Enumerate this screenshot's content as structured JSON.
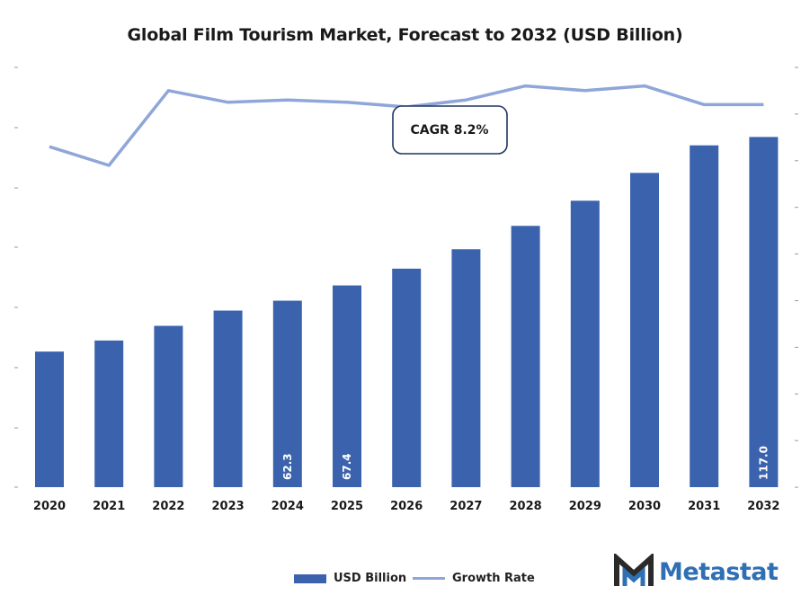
{
  "chart_data": {
    "type": "bar",
    "title": "Global Film Tourism Market, Forecast to 2032 (USD Billion)",
    "categories": [
      "2020",
      "2021",
      "2022",
      "2023",
      "2024",
      "2025",
      "2026",
      "2027",
      "2028",
      "2029",
      "2030",
      "2031",
      "2032"
    ],
    "series": [
      {
        "name": "USD Billion",
        "type": "bar",
        "values": [
          45.3,
          49.0,
          53.9,
          59.0,
          62.3,
          67.4,
          73.0,
          79.5,
          87.3,
          95.7,
          105.0,
          114.2,
          117.0
        ],
        "data_labels": {
          "2024": "62.3",
          "2025": "67.4",
          "2032": "117.0"
        },
        "color": "#3b63ad"
      },
      {
        "name": "Growth Rate",
        "type": "line",
        "values": [
          7.6,
          7.2,
          8.8,
          8.55,
          8.6,
          8.55,
          8.45,
          8.6,
          8.9,
          8.8,
          8.9,
          8.5,
          8.5
        ],
        "color": "#8fa6d9"
      }
    ],
    "annotation": "CAGR 8.2%",
    "legend_position": "bottom-center",
    "grid": false
  },
  "legend": {
    "bar_label": "USD Billion",
    "line_label": "Growth Rate"
  },
  "logo": {
    "text": "Metastat",
    "color": "#2f6fb3"
  }
}
